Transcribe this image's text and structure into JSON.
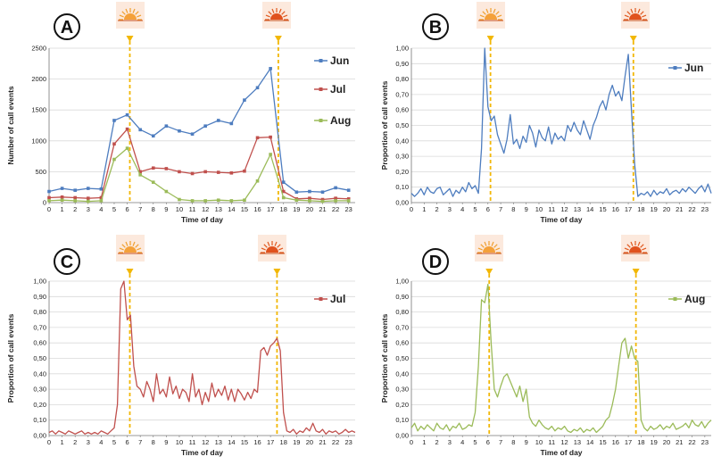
{
  "chart_data": [
    {
      "type": "line",
      "panel_label": "A",
      "xlabel": "Time of day",
      "ylabel": "Number of call events",
      "ylim": [
        0,
        2500
      ],
      "yticks": [
        "0",
        "500",
        "1000",
        "1500",
        "2000",
        "2500"
      ],
      "x": [
        0,
        1,
        2,
        3,
        4,
        5,
        6,
        7,
        8,
        9,
        10,
        11,
        12,
        13,
        14,
        15,
        16,
        17,
        18,
        19,
        20,
        21,
        22,
        23
      ],
      "sunrise_hour": 6.2,
      "sunset_hour": 17.6,
      "series": [
        {
          "name": "Jun",
          "color": "#4e7dbf",
          "values": [
            180,
            230,
            200,
            230,
            220,
            1330,
            1420,
            1180,
            1080,
            1240,
            1160,
            1110,
            1240,
            1330,
            1280,
            1660,
            1860,
            2170,
            330,
            170,
            180,
            170,
            240,
            200
          ]
        },
        {
          "name": "Jul",
          "color": "#c0504d",
          "values": [
            80,
            90,
            80,
            70,
            80,
            950,
            1190,
            500,
            560,
            550,
            500,
            470,
            500,
            490,
            480,
            510,
            1050,
            1060,
            180,
            60,
            70,
            50,
            70,
            60
          ]
        },
        {
          "name": "Aug",
          "color": "#9bbb59",
          "values": [
            30,
            40,
            30,
            20,
            30,
            700,
            880,
            450,
            330,
            180,
            50,
            30,
            30,
            40,
            30,
            40,
            350,
            780,
            80,
            40,
            30,
            20,
            30,
            30
          ]
        }
      ],
      "grid": "horizontal",
      "legend_position": "right"
    },
    {
      "type": "line",
      "panel_label": "B",
      "xlabel": "Time of day",
      "ylabel": "Proportion of call events",
      "ylim": [
        0,
        1
      ],
      "yticks": [
        "0,00",
        "0,10",
        "0,20",
        "0,30",
        "0,40",
        "0,50",
        "0,60",
        "0,70",
        "0,80",
        "0,90",
        "1,00"
      ],
      "x": [
        0,
        0.25,
        0.5,
        0.75,
        1,
        1.25,
        1.5,
        1.75,
        2,
        2.25,
        2.5,
        2.75,
        3,
        3.25,
        3.5,
        3.75,
        4,
        4.25,
        4.5,
        4.75,
        5,
        5.25,
        5.5,
        5.75,
        6,
        6.25,
        6.5,
        6.75,
        7,
        7.25,
        7.5,
        7.75,
        8,
        8.25,
        8.5,
        8.75,
        9,
        9.25,
        9.5,
        9.75,
        10,
        10.25,
        10.5,
        10.75,
        11,
        11.25,
        11.5,
        11.75,
        12,
        12.25,
        12.5,
        12.75,
        13,
        13.25,
        13.5,
        13.75,
        14,
        14.25,
        14.5,
        14.75,
        15,
        15.25,
        15.5,
        15.75,
        16,
        16.25,
        16.5,
        16.75,
        17,
        17.25,
        17.5,
        17.75,
        18,
        18.25,
        18.5,
        18.75,
        19,
        19.25,
        19.5,
        19.75,
        20,
        20.25,
        20.5,
        20.75,
        21,
        21.25,
        21.5,
        21.75,
        22,
        22.25,
        22.5,
        22.75,
        23,
        23.25,
        23.5
      ],
      "sunrise_hour": 6.2,
      "sunset_hour": 17.4,
      "series": [
        {
          "name": "Jun",
          "color": "#4e7dbf",
          "values": [
            0.06,
            0.04,
            0.06,
            0.09,
            0.05,
            0.1,
            0.07,
            0.06,
            0.09,
            0.1,
            0.05,
            0.07,
            0.09,
            0.04,
            0.08,
            0.06,
            0.1,
            0.07,
            0.13,
            0.09,
            0.11,
            0.06,
            0.35,
            1.0,
            0.62,
            0.53,
            0.56,
            0.44,
            0.38,
            0.32,
            0.41,
            0.57,
            0.38,
            0.41,
            0.35,
            0.43,
            0.39,
            0.5,
            0.45,
            0.36,
            0.47,
            0.42,
            0.4,
            0.49,
            0.38,
            0.45,
            0.41,
            0.43,
            0.4,
            0.5,
            0.46,
            0.52,
            0.47,
            0.44,
            0.53,
            0.47,
            0.41,
            0.5,
            0.55,
            0.62,
            0.66,
            0.6,
            0.7,
            0.76,
            0.69,
            0.72,
            0.66,
            0.82,
            0.96,
            0.6,
            0.25,
            0.04,
            0.06,
            0.05,
            0.07,
            0.04,
            0.08,
            0.05,
            0.07,
            0.06,
            0.09,
            0.05,
            0.07,
            0.08,
            0.06,
            0.09,
            0.07,
            0.1,
            0.08,
            0.06,
            0.09,
            0.11,
            0.07,
            0.12,
            0.06
          ]
        }
      ],
      "grid": "horizontal",
      "legend_position": "right"
    },
    {
      "type": "line",
      "panel_label": "C",
      "xlabel": "Time of day",
      "ylabel": "Proportion of call events",
      "ylim": [
        0,
        1
      ],
      "yticks": [
        "0,00",
        "0,10",
        "0,20",
        "0,30",
        "0,40",
        "0,50",
        "0,60",
        "0,70",
        "0,80",
        "0,90",
        "1,00"
      ],
      "x": [
        0,
        0.25,
        0.5,
        0.75,
        1,
        1.25,
        1.5,
        1.75,
        2,
        2.25,
        2.5,
        2.75,
        3,
        3.25,
        3.5,
        3.75,
        4,
        4.25,
        4.5,
        4.75,
        5,
        5.25,
        5.5,
        5.75,
        6,
        6.25,
        6.5,
        6.75,
        7,
        7.25,
        7.5,
        7.75,
        8,
        8.25,
        8.5,
        8.75,
        9,
        9.25,
        9.5,
        9.75,
        10,
        10.25,
        10.5,
        10.75,
        11,
        11.25,
        11.5,
        11.75,
        12,
        12.25,
        12.5,
        12.75,
        13,
        13.25,
        13.5,
        13.75,
        14,
        14.25,
        14.5,
        14.75,
        15,
        15.25,
        15.5,
        15.75,
        16,
        16.25,
        16.5,
        16.75,
        17,
        17.25,
        17.5,
        17.75,
        18,
        18.25,
        18.5,
        18.75,
        19,
        19.25,
        19.5,
        19.75,
        20,
        20.25,
        20.5,
        20.75,
        21,
        21.25,
        21.5,
        21.75,
        22,
        22.25,
        22.5,
        22.75,
        23,
        23.25,
        23.5
      ],
      "sunrise_hour": 6.2,
      "sunset_hour": 17.5,
      "series": [
        {
          "name": "Jul",
          "color": "#c0504d",
          "values": [
            0.02,
            0.03,
            0.01,
            0.03,
            0.02,
            0.01,
            0.03,
            0.02,
            0.01,
            0.02,
            0.03,
            0.01,
            0.02,
            0.01,
            0.02,
            0.01,
            0.03,
            0.02,
            0.01,
            0.03,
            0.05,
            0.2,
            0.95,
            1.0,
            0.75,
            0.78,
            0.45,
            0.32,
            0.3,
            0.25,
            0.35,
            0.3,
            0.22,
            0.4,
            0.27,
            0.3,
            0.25,
            0.38,
            0.27,
            0.32,
            0.24,
            0.3,
            0.28,
            0.22,
            0.4,
            0.25,
            0.3,
            0.2,
            0.28,
            0.22,
            0.34,
            0.25,
            0.3,
            0.26,
            0.32,
            0.23,
            0.3,
            0.22,
            0.3,
            0.27,
            0.23,
            0.28,
            0.24,
            0.3,
            0.28,
            0.55,
            0.57,
            0.52,
            0.58,
            0.6,
            0.63,
            0.55,
            0.15,
            0.03,
            0.02,
            0.04,
            0.01,
            0.03,
            0.02,
            0.05,
            0.03,
            0.08,
            0.03,
            0.02,
            0.04,
            0.01,
            0.03,
            0.02,
            0.03,
            0.01,
            0.02,
            0.04,
            0.02,
            0.03,
            0.02
          ]
        }
      ],
      "grid": "horizontal",
      "legend_position": "right"
    },
    {
      "type": "line",
      "panel_label": "D",
      "xlabel": "Time of day",
      "ylabel": "Proportion of call events",
      "ylim": [
        0,
        1
      ],
      "yticks": [
        "0,00",
        "0,10",
        "0,20",
        "0,30",
        "0,40",
        "0,50",
        "0,60",
        "0,70",
        "0,80",
        "0,90",
        "1,00"
      ],
      "x": [
        0,
        0.25,
        0.5,
        0.75,
        1,
        1.25,
        1.5,
        1.75,
        2,
        2.25,
        2.5,
        2.75,
        3,
        3.25,
        3.5,
        3.75,
        4,
        4.25,
        4.5,
        4.75,
        5,
        5.25,
        5.5,
        5.75,
        6,
        6.25,
        6.5,
        6.75,
        7,
        7.25,
        7.5,
        7.75,
        8,
        8.25,
        8.5,
        8.75,
        9,
        9.25,
        9.5,
        9.75,
        10,
        10.25,
        10.5,
        10.75,
        11,
        11.25,
        11.5,
        11.75,
        12,
        12.25,
        12.5,
        12.75,
        13,
        13.25,
        13.5,
        13.75,
        14,
        14.25,
        14.5,
        14.75,
        15,
        15.25,
        15.5,
        15.75,
        16,
        16.25,
        16.5,
        16.75,
        17,
        17.25,
        17.5,
        17.75,
        18,
        18.25,
        18.5,
        18.75,
        19,
        19.25,
        19.5,
        19.75,
        20,
        20.25,
        20.5,
        20.75,
        21,
        21.25,
        21.5,
        21.75,
        22,
        22.25,
        22.5,
        22.75,
        23,
        23.25,
        23.5
      ],
      "sunrise_hour": 6.1,
      "sunset_hour": 17.6,
      "series": [
        {
          "name": "Aug",
          "color": "#9bbb59",
          "values": [
            0.05,
            0.08,
            0.03,
            0.06,
            0.04,
            0.07,
            0.05,
            0.03,
            0.08,
            0.05,
            0.04,
            0.07,
            0.03,
            0.06,
            0.05,
            0.08,
            0.04,
            0.05,
            0.07,
            0.06,
            0.15,
            0.45,
            0.88,
            0.86,
            0.98,
            0.6,
            0.3,
            0.25,
            0.32,
            0.38,
            0.4,
            0.35,
            0.3,
            0.25,
            0.32,
            0.22,
            0.3,
            0.12,
            0.08,
            0.06,
            0.1,
            0.07,
            0.05,
            0.04,
            0.06,
            0.03,
            0.05,
            0.04,
            0.06,
            0.03,
            0.02,
            0.04,
            0.03,
            0.05,
            0.02,
            0.04,
            0.03,
            0.05,
            0.02,
            0.04,
            0.06,
            0.1,
            0.12,
            0.2,
            0.3,
            0.45,
            0.6,
            0.63,
            0.5,
            0.58,
            0.5,
            0.48,
            0.1,
            0.05,
            0.03,
            0.06,
            0.04,
            0.05,
            0.07,
            0.04,
            0.06,
            0.05,
            0.08,
            0.04,
            0.05,
            0.06,
            0.08,
            0.05,
            0.1,
            0.07,
            0.06,
            0.09,
            0.05,
            0.08,
            0.1
          ]
        }
      ],
      "grid": "horizontal",
      "legend_position": "right"
    }
  ]
}
